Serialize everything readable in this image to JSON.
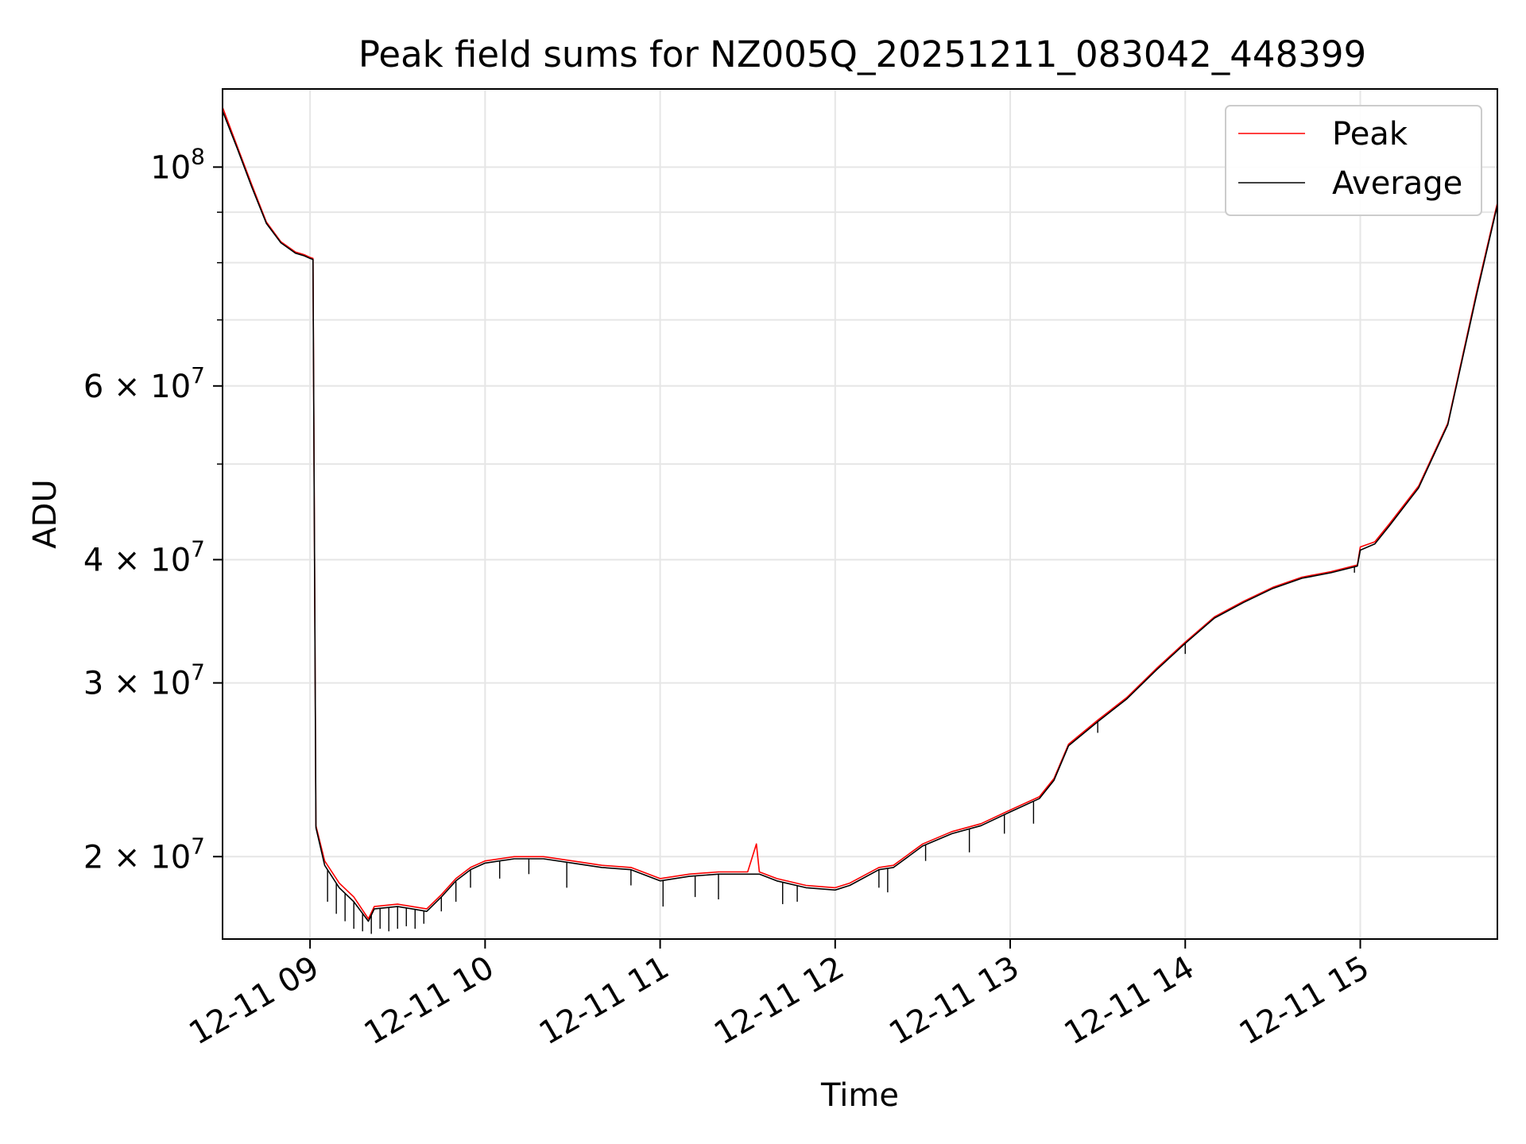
{
  "chart_data": {
    "type": "line",
    "title": "Peak field sums for NZ005Q_20251211_083042_448399",
    "xlabel": "Time",
    "ylabel": "ADU",
    "yscale": "log",
    "xlim": [
      "2025-12-11 08:30",
      "2025-12-11 15:47"
    ],
    "ylim": [
      16500000,
      120000000
    ],
    "x_ticks": [
      "12-11 09",
      "12-11 10",
      "12-11 11",
      "12-11 12",
      "12-11 13",
      "12-11 14",
      "12-11 15"
    ],
    "x_tick_times": [
      "2025-12-11 09:00",
      "2025-12-11 10:00",
      "2025-12-11 11:00",
      "2025-12-11 12:00",
      "2025-12-11 13:00",
      "2025-12-11 14:00",
      "2025-12-11 15:00"
    ],
    "y_ticks": [
      {
        "value": 20000000,
        "base": "2 × 10",
        "exp": "7"
      },
      {
        "value": 30000000,
        "base": "3 × 10",
        "exp": "7"
      },
      {
        "value": 40000000,
        "base": "4 × 10",
        "exp": "7"
      },
      {
        "value": 60000000,
        "base": "6 × 10",
        "exp": "7"
      },
      {
        "value": 100000000,
        "base": "10",
        "exp": "8"
      }
    ],
    "y_minor_ticks": [
      50000000,
      70000000,
      80000000,
      90000000
    ],
    "grid": true,
    "legend_position": "top-right",
    "series": [
      {
        "name": "Peak",
        "color": "#ff0000",
        "points": [
          [
            "2025-12-11 08:30",
            115000000
          ],
          [
            "2025-12-11 08:35",
            105000000
          ],
          [
            "2025-12-11 08:40",
            96000000
          ],
          [
            "2025-12-11 08:45",
            88000000
          ],
          [
            "2025-12-11 08:50",
            84000000
          ],
          [
            "2025-12-11 08:55",
            82000000
          ],
          [
            "2025-12-11 08:58",
            81500000
          ],
          [
            "2025-12-11 09:00",
            81000000
          ],
          [
            "2025-12-11 09:01",
            80800000
          ],
          [
            "2025-12-11 09:02",
            21500000
          ],
          [
            "2025-12-11 09:05",
            19800000
          ],
          [
            "2025-12-11 09:10",
            18800000
          ],
          [
            "2025-12-11 09:15",
            18200000
          ],
          [
            "2025-12-11 09:20",
            17300000
          ],
          [
            "2025-12-11 09:22",
            17800000
          ],
          [
            "2025-12-11 09:30",
            17900000
          ],
          [
            "2025-12-11 09:35",
            17800000
          ],
          [
            "2025-12-11 09:40",
            17700000
          ],
          [
            "2025-12-11 09:45",
            18300000
          ],
          [
            "2025-12-11 09:50",
            19000000
          ],
          [
            "2025-12-11 09:55",
            19500000
          ],
          [
            "2025-12-11 10:00",
            19800000
          ],
          [
            "2025-12-11 10:10",
            20000000
          ],
          [
            "2025-12-11 10:20",
            20000000
          ],
          [
            "2025-12-11 10:30",
            19800000
          ],
          [
            "2025-12-11 10:40",
            19600000
          ],
          [
            "2025-12-11 10:50",
            19500000
          ],
          [
            "2025-12-11 11:00",
            19000000
          ],
          [
            "2025-12-11 11:10",
            19200000
          ],
          [
            "2025-12-11 11:20",
            19300000
          ],
          [
            "2025-12-11 11:30",
            19300000
          ],
          [
            "2025-12-11 11:33",
            20600000
          ],
          [
            "2025-12-11 11:34",
            19300000
          ],
          [
            "2025-12-11 11:40",
            19000000
          ],
          [
            "2025-12-11 11:50",
            18700000
          ],
          [
            "2025-12-11 12:00",
            18600000
          ],
          [
            "2025-12-11 12:05",
            18800000
          ],
          [
            "2025-12-11 12:15",
            19500000
          ],
          [
            "2025-12-11 12:20",
            19600000
          ],
          [
            "2025-12-11 12:30",
            20600000
          ],
          [
            "2025-12-11 12:40",
            21200000
          ],
          [
            "2025-12-11 12:50",
            21600000
          ],
          [
            "2025-12-11 13:00",
            22300000
          ],
          [
            "2025-12-11 13:10",
            23000000
          ],
          [
            "2025-12-11 13:15",
            24000000
          ],
          [
            "2025-12-11 13:20",
            26000000
          ],
          [
            "2025-12-11 13:30",
            27500000
          ],
          [
            "2025-12-11 13:40",
            29000000
          ],
          [
            "2025-12-11 13:50",
            31000000
          ],
          [
            "2025-12-11 14:00",
            33000000
          ],
          [
            "2025-12-11 14:10",
            35000000
          ],
          [
            "2025-12-11 14:20",
            36300000
          ],
          [
            "2025-12-11 14:30",
            37500000
          ],
          [
            "2025-12-11 14:40",
            38400000
          ],
          [
            "2025-12-11 14:50",
            38900000
          ],
          [
            "2025-12-11 14:59",
            39500000
          ],
          [
            "2025-12-11 15:00",
            41200000
          ],
          [
            "2025-12-11 15:05",
            41700000
          ],
          [
            "2025-12-11 15:10",
            43500000
          ],
          [
            "2025-12-11 15:20",
            47500000
          ],
          [
            "2025-12-11 15:30",
            55000000
          ],
          [
            "2025-12-11 15:40",
            75000000
          ],
          [
            "2025-12-11 15:47",
            92000000
          ]
        ]
      },
      {
        "name": "Average",
        "color": "#000000",
        "points": [
          [
            "2025-12-11 08:30",
            114000000
          ],
          [
            "2025-12-11 08:35",
            104500000
          ],
          [
            "2025-12-11 08:40",
            95500000
          ],
          [
            "2025-12-11 08:45",
            87700000
          ],
          [
            "2025-12-11 08:50",
            83800000
          ],
          [
            "2025-12-11 08:55",
            81800000
          ],
          [
            "2025-12-11 08:58",
            81300000
          ],
          [
            "2025-12-11 09:00",
            80800000
          ],
          [
            "2025-12-11 09:01",
            80600000
          ],
          [
            "2025-12-11 09:02",
            21400000
          ],
          [
            "2025-12-11 09:05",
            19600000
          ],
          [
            "2025-12-11 09:10",
            18600000
          ],
          [
            "2025-12-11 09:15",
            18000000
          ],
          [
            "2025-12-11 09:20",
            17200000
          ],
          [
            "2025-12-11 09:22",
            17700000
          ],
          [
            "2025-12-11 09:30",
            17800000
          ],
          [
            "2025-12-11 09:35",
            17700000
          ],
          [
            "2025-12-11 09:40",
            17600000
          ],
          [
            "2025-12-11 09:45",
            18200000
          ],
          [
            "2025-12-11 09:50",
            18900000
          ],
          [
            "2025-12-11 09:55",
            19400000
          ],
          [
            "2025-12-11 10:00",
            19700000
          ],
          [
            "2025-12-11 10:10",
            19900000
          ],
          [
            "2025-12-11 10:20",
            19900000
          ],
          [
            "2025-12-11 10:30",
            19700000
          ],
          [
            "2025-12-11 10:40",
            19500000
          ],
          [
            "2025-12-11 10:50",
            19400000
          ],
          [
            "2025-12-11 11:00",
            18900000
          ],
          [
            "2025-12-11 11:10",
            19100000
          ],
          [
            "2025-12-11 11:20",
            19200000
          ],
          [
            "2025-12-11 11:30",
            19200000
          ],
          [
            "2025-12-11 11:34",
            19200000
          ],
          [
            "2025-12-11 11:40",
            18900000
          ],
          [
            "2025-12-11 11:50",
            18600000
          ],
          [
            "2025-12-11 12:00",
            18500000
          ],
          [
            "2025-12-11 12:05",
            18700000
          ],
          [
            "2025-12-11 12:15",
            19400000
          ],
          [
            "2025-12-11 12:20",
            19500000
          ],
          [
            "2025-12-11 12:30",
            20500000
          ],
          [
            "2025-12-11 12:40",
            21100000
          ],
          [
            "2025-12-11 12:50",
            21500000
          ],
          [
            "2025-12-11 13:00",
            22200000
          ],
          [
            "2025-12-11 13:10",
            22900000
          ],
          [
            "2025-12-11 13:15",
            23900000
          ],
          [
            "2025-12-11 13:20",
            25900000
          ],
          [
            "2025-12-11 13:30",
            27400000
          ],
          [
            "2025-12-11 13:40",
            28900000
          ],
          [
            "2025-12-11 13:50",
            30900000
          ],
          [
            "2025-12-11 14:00",
            32900000
          ],
          [
            "2025-12-11 14:10",
            34900000
          ],
          [
            "2025-12-11 14:20",
            36200000
          ],
          [
            "2025-12-11 14:30",
            37400000
          ],
          [
            "2025-12-11 14:40",
            38300000
          ],
          [
            "2025-12-11 14:50",
            38800000
          ],
          [
            "2025-12-11 14:59",
            39400000
          ],
          [
            "2025-12-11 15:00",
            40900000
          ],
          [
            "2025-12-11 15:05",
            41500000
          ],
          [
            "2025-12-11 15:10",
            43300000
          ],
          [
            "2025-12-11 15:20",
            47300000
          ],
          [
            "2025-12-11 15:30",
            54800000
          ],
          [
            "2025-12-11 15:40",
            74500000
          ],
          [
            "2025-12-11 15:47",
            91500000
          ]
        ],
        "dips": [
          [
            "2025-12-11 09:06",
            18000000
          ],
          [
            "2025-12-11 09:09",
            17500000
          ],
          [
            "2025-12-11 09:12",
            17200000
          ],
          [
            "2025-12-11 09:15",
            16900000
          ],
          [
            "2025-12-11 09:18",
            16800000
          ],
          [
            "2025-12-11 09:21",
            16700000
          ],
          [
            "2025-12-11 09:24",
            16900000
          ],
          [
            "2025-12-11 09:27",
            16800000
          ],
          [
            "2025-12-11 09:30",
            16900000
          ],
          [
            "2025-12-11 09:33",
            17000000
          ],
          [
            "2025-12-11 09:36",
            16900000
          ],
          [
            "2025-12-11 09:39",
            17100000
          ],
          [
            "2025-12-11 09:45",
            17600000
          ],
          [
            "2025-12-11 09:50",
            18000000
          ],
          [
            "2025-12-11 09:55",
            18600000
          ],
          [
            "2025-12-11 10:05",
            19000000
          ],
          [
            "2025-12-11 10:15",
            19200000
          ],
          [
            "2025-12-11 10:28",
            18600000
          ],
          [
            "2025-12-11 10:50",
            18700000
          ],
          [
            "2025-12-11 11:01",
            17800000
          ],
          [
            "2025-12-11 11:12",
            18200000
          ],
          [
            "2025-12-11 11:20",
            18100000
          ],
          [
            "2025-12-11 11:42",
            17900000
          ],
          [
            "2025-12-11 11:47",
            18000000
          ],
          [
            "2025-12-11 12:15",
            18600000
          ],
          [
            "2025-12-11 12:18",
            18400000
          ],
          [
            "2025-12-11 12:31",
            19800000
          ],
          [
            "2025-12-11 12:46",
            20200000
          ],
          [
            "2025-12-11 12:58",
            21100000
          ],
          [
            "2025-12-11 13:08",
            21600000
          ],
          [
            "2025-12-11 13:30",
            26700000
          ],
          [
            "2025-12-11 14:00",
            32100000
          ],
          [
            "2025-12-11 14:58",
            38800000
          ]
        ]
      }
    ]
  }
}
